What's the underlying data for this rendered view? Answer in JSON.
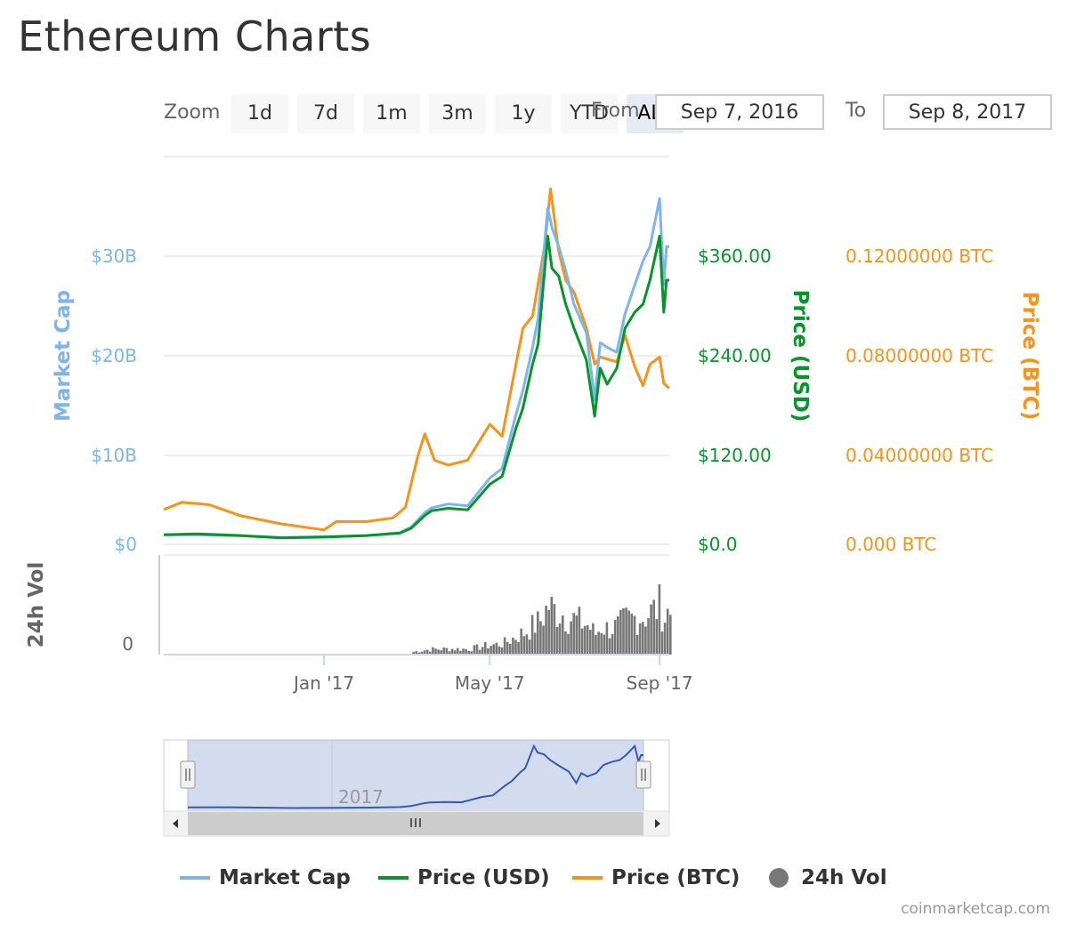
{
  "title": "Ethereum Charts",
  "toolbar": {
    "zoom_label": "Zoom",
    "buttons": [
      "1d",
      "7d",
      "1m",
      "3m",
      "1y",
      "YTD",
      "ALL"
    ],
    "active": "ALL",
    "from_label": "From",
    "from_value": "Sep 7, 2016",
    "to_label": "To",
    "to_value": "Sep 8, 2017"
  },
  "colors": {
    "market_cap": "#7cb5ec",
    "price_usd": "#07942a",
    "price_btc": "#f7931a",
    "volume": "#777777",
    "navigator_line": "#335cad",
    "navigator_fill": "#d3dbee"
  },
  "credits": "coinmarketcap.com",
  "chart_data": {
    "type": "line",
    "x_range": [
      "2016-09-07",
      "2017-09-08"
    ],
    "x_ticks": [
      "Jan '17",
      "May '17",
      "Sep '17"
    ],
    "axes": {
      "market_cap": {
        "title": "Market Cap",
        "ticks": [
          "$0",
          "$10B",
          "$20B",
          "$30B"
        ],
        "range": [
          0,
          30
        ]
      },
      "price_usd": {
        "title": "Price (USD)",
        "ticks": [
          "$0.0",
          "$120.00",
          "$240.00",
          "$360.00"
        ],
        "range": [
          0,
          360
        ]
      },
      "price_btc": {
        "title": "Price (BTC)",
        "ticks": [
          "0.000 BTC",
          "0.04000000 BTC",
          "0.08000000 BTC",
          "0.12000000 BTC"
        ],
        "range": [
          0,
          0.12
        ]
      },
      "volume": {
        "title": "24h Vol",
        "ticks": [
          "0"
        ]
      }
    },
    "series": [
      {
        "name": "Market Cap",
        "points": [
          [
            "2016-09-07",
            1.0
          ],
          [
            "2016-10-01",
            1.0
          ],
          [
            "2016-11-01",
            0.9
          ],
          [
            "2016-12-01",
            0.7
          ],
          [
            "2017-01-01",
            0.8
          ],
          [
            "2017-02-01",
            0.9
          ],
          [
            "2017-02-25",
            1.2
          ],
          [
            "2017-03-05",
            1.8
          ],
          [
            "2017-03-15",
            3.3
          ],
          [
            "2017-03-20",
            3.8
          ],
          [
            "2017-04-01",
            4.2
          ],
          [
            "2017-04-15",
            4.0
          ],
          [
            "2017-05-01",
            6.9
          ],
          [
            "2017-05-10",
            7.9
          ],
          [
            "2017-05-20",
            13.5
          ],
          [
            "2017-05-25",
            16.0
          ],
          [
            "2017-06-01",
            20.5
          ],
          [
            "2017-06-05",
            23.5
          ],
          [
            "2017-06-12",
            35.0
          ],
          [
            "2017-06-15",
            33.0
          ],
          [
            "2017-06-20",
            31.0
          ],
          [
            "2017-06-25",
            28.5
          ],
          [
            "2017-07-01",
            25.0
          ],
          [
            "2017-07-10",
            22.0
          ],
          [
            "2017-07-16",
            15.0
          ],
          [
            "2017-07-20",
            21.0
          ],
          [
            "2017-07-25",
            20.5
          ],
          [
            "2017-08-01",
            20.0
          ],
          [
            "2017-08-07",
            24.0
          ],
          [
            "2017-08-14",
            27.0
          ],
          [
            "2017-08-20",
            29.5
          ],
          [
            "2017-08-25",
            31.0
          ],
          [
            "2017-09-01",
            36.0
          ],
          [
            "2017-09-04",
            27.0
          ],
          [
            "2017-09-06",
            31.0
          ],
          [
            "2017-09-08",
            31.0
          ]
        ]
      },
      {
        "name": "Price (USD)",
        "points": [
          [
            "2016-09-07",
            12
          ],
          [
            "2016-10-01",
            13
          ],
          [
            "2016-11-01",
            11
          ],
          [
            "2016-12-01",
            8
          ],
          [
            "2017-01-01",
            9
          ],
          [
            "2017-02-01",
            11
          ],
          [
            "2017-02-25",
            14
          ],
          [
            "2017-03-05",
            20
          ],
          [
            "2017-03-15",
            36
          ],
          [
            "2017-03-20",
            42
          ],
          [
            "2017-04-01",
            45
          ],
          [
            "2017-04-15",
            43
          ],
          [
            "2017-05-01",
            75
          ],
          [
            "2017-05-10",
            85
          ],
          [
            "2017-05-20",
            145
          ],
          [
            "2017-05-25",
            170
          ],
          [
            "2017-06-01",
            225
          ],
          [
            "2017-06-05",
            250
          ],
          [
            "2017-06-12",
            385
          ],
          [
            "2017-06-15",
            345
          ],
          [
            "2017-06-20",
            335
          ],
          [
            "2017-06-25",
            300
          ],
          [
            "2017-07-01",
            270
          ],
          [
            "2017-07-10",
            230
          ],
          [
            "2017-07-16",
            160
          ],
          [
            "2017-07-20",
            220
          ],
          [
            "2017-07-25",
            200
          ],
          [
            "2017-08-01",
            220
          ],
          [
            "2017-08-07",
            270
          ],
          [
            "2017-08-14",
            290
          ],
          [
            "2017-08-20",
            300
          ],
          [
            "2017-08-25",
            330
          ],
          [
            "2017-09-01",
            385
          ],
          [
            "2017-09-04",
            290
          ],
          [
            "2017-09-06",
            330
          ],
          [
            "2017-09-08",
            330
          ]
        ]
      },
      {
        "name": "Price (BTC)",
        "points": [
          [
            "2016-09-07",
            0.0145
          ],
          [
            "2016-09-20",
            0.0175
          ],
          [
            "2016-10-10",
            0.0165
          ],
          [
            "2016-11-01",
            0.012
          ],
          [
            "2016-12-01",
            0.0085
          ],
          [
            "2017-01-01",
            0.006
          ],
          [
            "2017-01-10",
            0.0095
          ],
          [
            "2017-02-01",
            0.0095
          ],
          [
            "2017-02-20",
            0.011
          ],
          [
            "2017-03-01",
            0.0155
          ],
          [
            "2017-03-10",
            0.037
          ],
          [
            "2017-03-15",
            0.046
          ],
          [
            "2017-03-22",
            0.035
          ],
          [
            "2017-04-01",
            0.033
          ],
          [
            "2017-04-15",
            0.035
          ],
          [
            "2017-05-01",
            0.05
          ],
          [
            "2017-05-10",
            0.045
          ],
          [
            "2017-05-20",
            0.075
          ],
          [
            "2017-05-25",
            0.09
          ],
          [
            "2017-06-01",
            0.095
          ],
          [
            "2017-06-10",
            0.125
          ],
          [
            "2017-06-14",
            0.148
          ],
          [
            "2017-06-20",
            0.122
          ],
          [
            "2017-06-25",
            0.11
          ],
          [
            "2017-07-01",
            0.105
          ],
          [
            "2017-07-10",
            0.09
          ],
          [
            "2017-07-16",
            0.075
          ],
          [
            "2017-07-20",
            0.078
          ],
          [
            "2017-08-01",
            0.076
          ],
          [
            "2017-08-07",
            0.087
          ],
          [
            "2017-08-14",
            0.074
          ],
          [
            "2017-08-20",
            0.066
          ],
          [
            "2017-08-25",
            0.075
          ],
          [
            "2017-09-01",
            0.078
          ],
          [
            "2017-09-04",
            0.067
          ],
          [
            "2017-09-08",
            0.065
          ]
        ]
      }
    ]
  }
}
